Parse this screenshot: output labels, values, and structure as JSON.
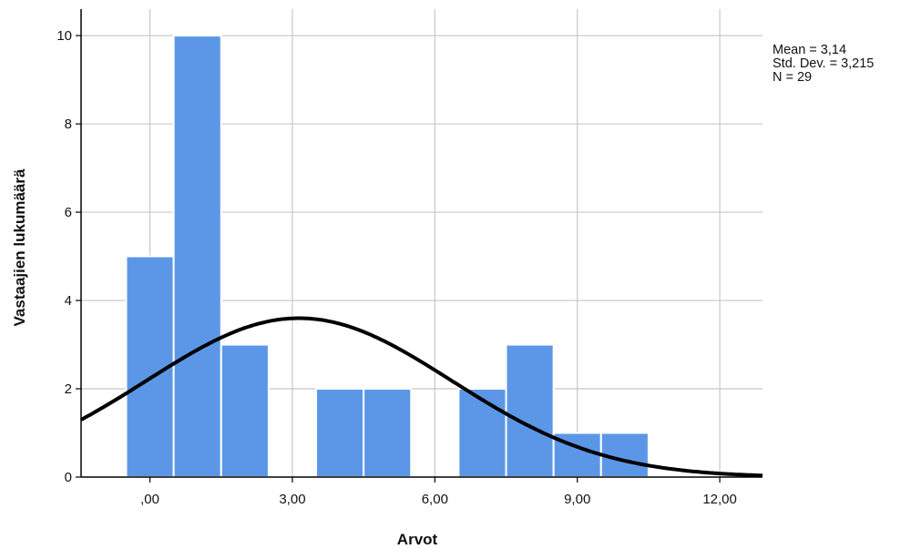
{
  "chart_data": {
    "type": "bar",
    "subtype": "histogram",
    "xlabel": "Arvot",
    "ylabel": "Vastaajien lukumäärä",
    "xlim": [
      -1.45,
      12.9
    ],
    "ylim": [
      0,
      10.6
    ],
    "x_ticks": [
      {
        "value": 0,
        "label": ",00"
      },
      {
        "value": 3,
        "label": "3,00"
      },
      {
        "value": 6,
        "label": "6,00"
      },
      {
        "value": 9,
        "label": "9,00"
      },
      {
        "value": 12,
        "label": "12,00"
      }
    ],
    "y_ticks": [
      {
        "value": 0,
        "label": "0"
      },
      {
        "value": 2,
        "label": "2"
      },
      {
        "value": 4,
        "label": "4"
      },
      {
        "value": 6,
        "label": "6"
      },
      {
        "value": 8,
        "label": "8"
      },
      {
        "value": 10,
        "label": "10"
      }
    ],
    "bins": [
      {
        "start": -0.5,
        "end": 0.5,
        "count": 5
      },
      {
        "start": 0.5,
        "end": 1.5,
        "count": 10
      },
      {
        "start": 1.5,
        "end": 2.5,
        "count": 3
      },
      {
        "start": 3.5,
        "end": 4.5,
        "count": 2
      },
      {
        "start": 4.5,
        "end": 5.5,
        "count": 2
      },
      {
        "start": 6.5,
        "end": 7.5,
        "count": 2
      },
      {
        "start": 7.5,
        "end": 8.5,
        "count": 3
      },
      {
        "start": 8.5,
        "end": 9.5,
        "count": 1
      },
      {
        "start": 9.5,
        "end": 10.5,
        "count": 1
      }
    ],
    "normal_curve": {
      "mean": 3.14,
      "std": 3.215,
      "n": 29,
      "bin_width": 1
    },
    "stats": {
      "mean": "Mean = 3,14",
      "std_dev": "Std. Dev. = 3,215",
      "n": "N = 29"
    },
    "grid": true,
    "colors": {
      "bar": "#5B97E6",
      "bar_edge": "#ffffff",
      "curve": "#000000",
      "grid": "#c8c8c8"
    }
  }
}
